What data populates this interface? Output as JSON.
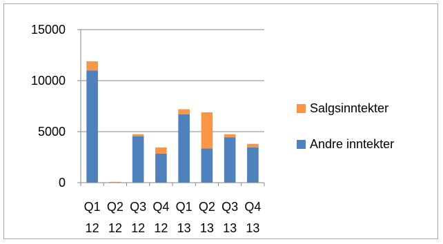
{
  "chart_data": {
    "type": "bar",
    "stacked": true,
    "title": "",
    "xlabel": "",
    "ylabel": "",
    "categories": [
      {
        "line1": "Q1",
        "line2": "12"
      },
      {
        "line1": "Q2",
        "line2": "12"
      },
      {
        "line1": "Q3",
        "line2": "12"
      },
      {
        "line1": "Q4",
        "line2": "12"
      },
      {
        "line1": "Q1",
        "line2": "13"
      },
      {
        "line1": "Q2",
        "line2": "13"
      },
      {
        "line1": "Q3",
        "line2": "13"
      },
      {
        "line1": "Q4",
        "line2": "13"
      }
    ],
    "series": [
      {
        "name": "Andre inntekter",
        "color": "#4f81bd",
        "values": [
          11000,
          0,
          4550,
          2850,
          6700,
          3350,
          4450,
          3450
        ]
      },
      {
        "name": "Salgsinntekter",
        "color": "#f79646",
        "values": [
          900,
          80,
          200,
          600,
          500,
          3550,
          300,
          350
        ]
      }
    ],
    "ylim": [
      0,
      15000
    ],
    "yticks": [
      0,
      5000,
      10000,
      15000
    ],
    "grid": true,
    "legend": {
      "position": "right",
      "order": [
        "Salgsinntekter",
        "Andre inntekter"
      ]
    }
  }
}
